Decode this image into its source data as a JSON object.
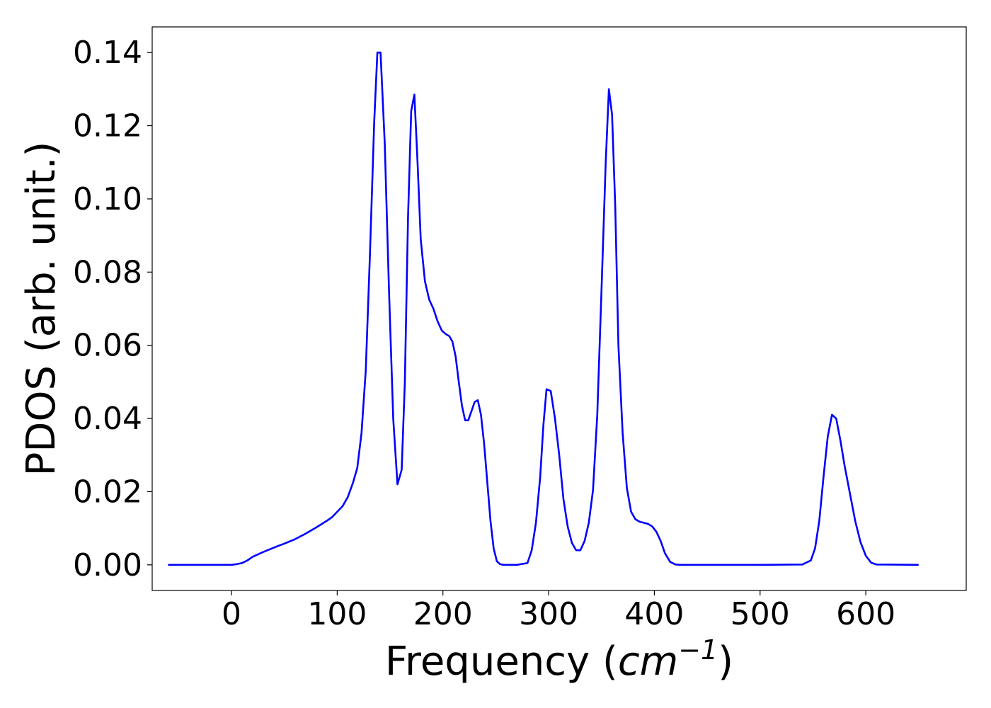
{
  "chart_data": {
    "type": "line",
    "xlabel": {
      "prefix": "Frequency (",
      "unit_base": "cm",
      "unit_exponent": "−1",
      "suffix": ")"
    },
    "ylabel": "PDOS (arb. unit.)",
    "xlim": [
      -75,
      695
    ],
    "ylim": [
      -0.007,
      0.147
    ],
    "x_ticks": [
      0,
      100,
      200,
      300,
      400,
      500,
      600
    ],
    "x_tick_labels": [
      "0",
      "100",
      "200",
      "300",
      "400",
      "500",
      "600"
    ],
    "y_ticks": [
      0.0,
      0.02,
      0.04,
      0.06,
      0.08,
      0.1,
      0.12,
      0.14
    ],
    "y_tick_labels": [
      "0.00",
      "0.02",
      "0.04",
      "0.06",
      "0.08",
      "0.10",
      "0.12",
      "0.14"
    ],
    "grid": false,
    "legend": "none",
    "series": [
      {
        "color": "#0000ff",
        "x": [
          -60,
          0,
          5,
          10,
          15,
          20,
          30,
          40,
          50,
          60,
          70,
          80,
          90,
          95,
          100,
          105,
          110,
          115,
          119,
          123,
          127,
          131,
          135,
          138,
          141,
          145,
          149,
          153,
          157,
          161,
          164,
          167,
          170,
          173,
          176,
          179,
          183,
          187,
          191,
          195,
          199,
          203,
          206,
          209,
          212,
          215,
          218,
          221,
          224,
          227,
          230,
          233,
          236,
          239,
          242,
          245,
          248,
          251,
          254,
          257,
          262,
          270,
          280,
          284,
          288,
          292,
          295,
          298,
          302,
          306,
          310,
          314,
          318,
          322,
          326,
          330,
          334,
          338,
          342,
          346,
          350,
          354,
          357,
          360,
          363,
          366,
          370,
          374,
          378,
          382,
          386,
          390,
          394,
          398,
          402,
          406,
          410,
          415,
          420,
          425,
          430,
          500,
          540,
          548,
          552,
          556,
          560,
          564,
          568,
          572,
          576,
          580,
          585,
          590,
          595,
          600,
          605,
          610,
          650
        ],
        "y": [
          0,
          0,
          0.0002,
          0.0005,
          0.0012,
          0.0022,
          0.0035,
          0.0047,
          0.0058,
          0.007,
          0.0085,
          0.0102,
          0.012,
          0.013,
          0.0145,
          0.016,
          0.0185,
          0.0225,
          0.0265,
          0.036,
          0.053,
          0.085,
          0.121,
          0.14,
          0.14,
          0.115,
          0.075,
          0.04,
          0.022,
          0.026,
          0.05,
          0.095,
          0.124,
          0.1285,
          0.11,
          0.089,
          0.0775,
          0.0725,
          0.07,
          0.0665,
          0.064,
          0.063,
          0.0625,
          0.061,
          0.057,
          0.05,
          0.0435,
          0.0395,
          0.0395,
          0.042,
          0.0445,
          0.045,
          0.041,
          0.033,
          0.0225,
          0.012,
          0.0045,
          0.001,
          0.0002,
          0,
          0,
          0,
          0.0005,
          0.004,
          0.0115,
          0.024,
          0.038,
          0.048,
          0.0475,
          0.04,
          0.03,
          0.018,
          0.0105,
          0.006,
          0.004,
          0.004,
          0.0065,
          0.0115,
          0.0205,
          0.041,
          0.075,
          0.11,
          0.13,
          0.123,
          0.098,
          0.06,
          0.036,
          0.021,
          0.0145,
          0.0125,
          0.0118,
          0.0115,
          0.0112,
          0.0105,
          0.009,
          0.0065,
          0.0032,
          0.0008,
          0.0001,
          0,
          0,
          0,
          0.0001,
          0.0012,
          0.0045,
          0.012,
          0.024,
          0.035,
          0.041,
          0.04,
          0.034,
          0.027,
          0.0195,
          0.012,
          0.0062,
          0.0025,
          0.0006,
          0.0001,
          0
        ]
      }
    ]
  }
}
